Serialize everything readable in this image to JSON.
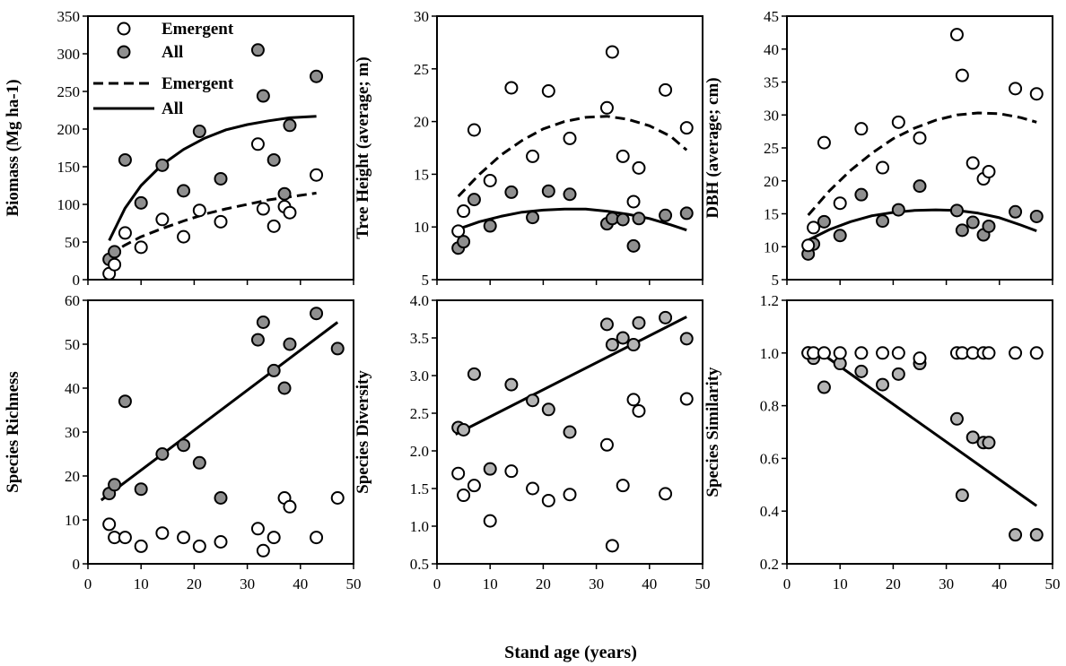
{
  "figure": {
    "xlabel": "Stand age (years)",
    "legend": {
      "placement": "top-left of first panel",
      "entries": [
        {
          "label": "Emergent",
          "kind": "marker",
          "fill": "#ffffff"
        },
        {
          "label": "All",
          "kind": "marker",
          "fill": "#8f8f8f"
        },
        {
          "label": "Emergent",
          "kind": "line",
          "dash": true
        },
        {
          "label": "All",
          "kind": "line",
          "dash": false
        }
      ]
    },
    "colors": {
      "emergent_fill": "#ffffff",
      "all_fill": "#8f8f8f",
      "all_fill_light": "#b4b4b4",
      "stroke": "#000000"
    }
  },
  "chart_data": [
    {
      "type": "scatter",
      "ylabel": "Biomass (Mg ha-1)",
      "xlim": [
        0,
        50
      ],
      "ylim": [
        0,
        350
      ],
      "xticks": [
        0,
        10,
        20,
        30,
        40,
        50
      ],
      "yticks": [
        0,
        50,
        100,
        150,
        200,
        250,
        300,
        350
      ],
      "series": [
        {
          "name": "Emergent",
          "marker": "open",
          "x": [
            4,
            5,
            7,
            10,
            14,
            18,
            21,
            25,
            32,
            33,
            35,
            37,
            38,
            43
          ],
          "y": [
            8,
            20,
            62,
            43,
            80,
            57,
            92,
            77,
            180,
            94,
            71,
            97,
            89,
            139
          ]
        },
        {
          "name": "All",
          "marker": "filled",
          "x": [
            4,
            5,
            7,
            10,
            14,
            18,
            21,
            25,
            32,
            33,
            35,
            37,
            38,
            43
          ],
          "y": [
            27,
            37,
            159,
            102,
            152,
            118,
            197,
            134,
            305,
            244,
            159,
            114,
            205,
            270
          ]
        }
      ],
      "fits": [
        {
          "name": "Emergent",
          "dash": true,
          "x": [
            4,
            7,
            10,
            14,
            18,
            22,
            26,
            30,
            34,
            38,
            43
          ],
          "y": [
            33,
            46,
            57,
            68,
            78,
            87,
            94,
            100,
            106,
            110,
            115
          ]
        },
        {
          "name": "All",
          "dash": false,
          "x": [
            4,
            7,
            10,
            14,
            18,
            22,
            26,
            30,
            34,
            38,
            43
          ],
          "y": [
            52,
            95,
            125,
            153,
            173,
            188,
            199,
            206,
            211,
            215,
            217
          ]
        }
      ]
    },
    {
      "type": "scatter",
      "ylabel": "Tree Height (average; m)",
      "xlim": [
        0,
        50
      ],
      "ylim": [
        5,
        30
      ],
      "xticks": [
        0,
        10,
        20,
        30,
        40,
        50
      ],
      "yticks": [
        5,
        10,
        15,
        20,
        25,
        30
      ],
      "series": [
        {
          "name": "Emergent",
          "marker": "open",
          "x": [
            4,
            5,
            7,
            10,
            14,
            18,
            21,
            25,
            32,
            33,
            35,
            37,
            38,
            43,
            47
          ],
          "y": [
            9.6,
            11.5,
            19.2,
            14.4,
            23.2,
            16.7,
            22.9,
            18.4,
            21.3,
            26.6,
            16.7,
            12.4,
            15.6,
            23.0,
            19.4
          ]
        },
        {
          "name": "All",
          "marker": "filled",
          "x": [
            4,
            5,
            7,
            10,
            14,
            18,
            21,
            25,
            32,
            33,
            35,
            37,
            38,
            43,
            47
          ],
          "y": [
            8.0,
            8.6,
            12.6,
            10.1,
            13.3,
            10.9,
            13.4,
            13.1,
            10.3,
            10.8,
            10.7,
            8.2,
            10.8,
            11.1,
            11.3
          ]
        }
      ],
      "fits": [
        {
          "name": "Emergent",
          "dash": true,
          "x": [
            4,
            8,
            12,
            16,
            20,
            24,
            28,
            32,
            36,
            40,
            44,
            47
          ],
          "y": [
            12.9,
            15.0,
            16.8,
            18.2,
            19.3,
            20.0,
            20.4,
            20.5,
            20.2,
            19.6,
            18.6,
            17.3
          ]
        },
        {
          "name": "All",
          "dash": false,
          "x": [
            4,
            8,
            12,
            16,
            20,
            24,
            28,
            32,
            36,
            40,
            44,
            47
          ],
          "y": [
            9.8,
            10.5,
            11.0,
            11.4,
            11.6,
            11.7,
            11.7,
            11.5,
            11.2,
            10.8,
            10.2,
            9.7
          ]
        }
      ]
    },
    {
      "type": "scatter",
      "ylabel": "DBH (average; cm)",
      "xlim": [
        0,
        50
      ],
      "ylim": [
        5,
        45
      ],
      "xticks": [
        0,
        10,
        20,
        30,
        40,
        50
      ],
      "yticks": [
        5,
        10,
        15,
        20,
        25,
        30,
        35,
        40,
        45
      ],
      "series": [
        {
          "name": "Emergent",
          "marker": "open",
          "x": [
            4,
            5,
            7,
            10,
            14,
            18,
            21,
            25,
            32,
            33,
            35,
            37,
            38,
            43,
            47
          ],
          "y": [
            10.2,
            12.9,
            25.8,
            16.6,
            27.9,
            22.0,
            28.9,
            26.5,
            42.2,
            36.0,
            22.7,
            20.3,
            21.4,
            34.0,
            33.2
          ]
        },
        {
          "name": "All",
          "marker": "filled",
          "x": [
            4,
            5,
            7,
            10,
            14,
            18,
            21,
            25,
            32,
            33,
            35,
            37,
            38,
            43,
            47
          ],
          "y": [
            8.9,
            10.4,
            13.8,
            11.7,
            17.9,
            13.9,
            15.6,
            19.2,
            15.5,
            12.5,
            13.7,
            11.8,
            13.1,
            15.3,
            14.6
          ]
        }
      ],
      "fits": [
        {
          "name": "Emergent",
          "dash": true,
          "x": [
            4,
            8,
            12,
            16,
            20,
            24,
            28,
            32,
            36,
            40,
            44,
            47
          ],
          "y": [
            14.8,
            18.5,
            21.6,
            24.2,
            26.4,
            28.0,
            29.2,
            30.0,
            30.3,
            30.2,
            29.6,
            28.9
          ]
        },
        {
          "name": "All",
          "dash": false,
          "x": [
            4,
            8,
            12,
            16,
            20,
            24,
            28,
            32,
            36,
            40,
            44,
            47
          ],
          "y": [
            11.0,
            12.6,
            13.8,
            14.7,
            15.2,
            15.5,
            15.6,
            15.5,
            15.1,
            14.4,
            13.3,
            12.4
          ]
        }
      ]
    },
    {
      "type": "scatter",
      "ylabel": "Species Richness",
      "xlim": [
        0,
        50
      ],
      "ylim": [
        0,
        60
      ],
      "xticks": [
        0,
        10,
        20,
        30,
        40,
        50
      ],
      "yticks": [
        0,
        10,
        20,
        30,
        40,
        50,
        60
      ],
      "series": [
        {
          "name": "Emergent",
          "marker": "open",
          "x": [
            4,
            5,
            7,
            10,
            14,
            18,
            21,
            25,
            32,
            33,
            35,
            37,
            38,
            43,
            47
          ],
          "y": [
            9,
            6,
            6,
            4,
            7,
            6,
            4,
            5,
            8,
            3,
            6,
            15,
            13,
            6,
            15
          ]
        },
        {
          "name": "All",
          "marker": "filled",
          "x": [
            4,
            5,
            7,
            10,
            14,
            18,
            21,
            25,
            32,
            33,
            35,
            37,
            38,
            43,
            47
          ],
          "y": [
            16,
            18,
            37,
            17,
            25,
            27,
            23,
            15,
            51,
            55,
            44,
            40,
            50,
            57,
            49
          ]
        }
      ],
      "fits": [
        {
          "name": "All",
          "dash": false,
          "x": [
            2.5,
            47
          ],
          "y": [
            14.5,
            55
          ]
        }
      ]
    },
    {
      "type": "scatter",
      "ylabel": "Species Diversity",
      "xlim": [
        0,
        50
      ],
      "ylim": [
        0.5,
        4.0
      ],
      "xticks": [
        0,
        10,
        20,
        30,
        40,
        50
      ],
      "yticks": [
        0.5,
        1.0,
        1.5,
        2.0,
        2.5,
        3.0,
        3.5,
        4.0
      ],
      "series": [
        {
          "name": "Emergent",
          "marker": "open",
          "x": [
            4,
            5,
            7,
            10,
            14,
            18,
            21,
            25,
            32,
            33,
            35,
            37,
            38,
            43,
            47
          ],
          "y": [
            1.7,
            1.41,
            1.54,
            1.07,
            1.73,
            1.5,
            1.34,
            1.42,
            2.08,
            0.74,
            1.54,
            2.68,
            2.53,
            1.43,
            2.69
          ]
        },
        {
          "name": "All",
          "marker": "filled",
          "x": [
            4,
            5,
            7,
            10,
            14,
            18,
            21,
            25,
            32,
            33,
            35,
            37,
            38,
            43,
            47
          ],
          "y": [
            2.31,
            2.28,
            3.02,
            1.76,
            2.88,
            2.67,
            2.55,
            2.25,
            3.68,
            3.41,
            3.5,
            3.41,
            3.7,
            3.77,
            3.49
          ]
        }
      ],
      "fits": [
        {
          "name": "All",
          "dash": false,
          "x": [
            3.5,
            47
          ],
          "y": [
            2.22,
            3.78
          ]
        }
      ]
    },
    {
      "type": "scatter",
      "ylabel": "Species Similarity",
      "xlim": [
        0,
        50
      ],
      "ylim": [
        0.2,
        1.2
      ],
      "xticks": [
        0,
        10,
        20,
        30,
        40,
        50
      ],
      "yticks": [
        0.2,
        0.4,
        0.6,
        0.8,
        1.0,
        1.2
      ],
      "series": [
        {
          "name": "Emergent",
          "marker": "open",
          "x": [
            4,
            5,
            7,
            10,
            14,
            18,
            21,
            25,
            32,
            33,
            35,
            37,
            38,
            43,
            47
          ],
          "y": [
            1.0,
            1.0,
            1.0,
            1.0,
            1.0,
            1.0,
            1.0,
            0.98,
            1.0,
            1.0,
            1.0,
            1.0,
            1.0,
            1.0,
            1.0
          ]
        },
        {
          "name": "All",
          "marker": "filled",
          "x": [
            4,
            5,
            7,
            10,
            14,
            18,
            21,
            25,
            32,
            33,
            35,
            37,
            38,
            43,
            47
          ],
          "y": [
            1.0,
            0.98,
            0.87,
            0.96,
            0.93,
            0.88,
            0.92,
            0.96,
            0.75,
            0.46,
            0.68,
            0.66,
            0.66,
            0.31,
            0.31
          ]
        }
      ],
      "fits": [
        {
          "name": "All",
          "dash": false,
          "x": [
            5,
            47
          ],
          "y": [
            1.02,
            0.42
          ]
        }
      ]
    }
  ]
}
